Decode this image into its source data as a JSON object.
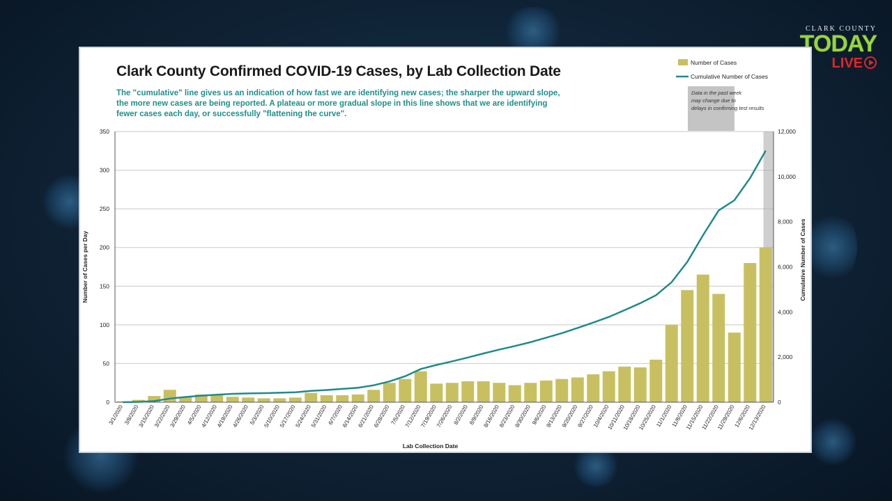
{
  "overlay": {
    "brand_top": "CLARK COUNTY",
    "brand_main": "TODAY",
    "brand_live": "LIVE"
  },
  "chart_data": {
    "type": "bar",
    "title": "Clark County Confirmed COVID-19 Cases, by Lab Collection Date",
    "subtitle": "The \"cumulative\" line gives  us an indication of how fast we are identifying new cases; the sharper the upward slope, the more new cases are being reported. A plateau or more gradual slope in this line shows that we are identifying fewer cases each day, or successfully \"flattening the curve\".",
    "xlabel": "Lab Collection Date",
    "ylabel": "Number of Cases per Day",
    "y2label": "Cumulative Number of Cases",
    "ylim": [
      0,
      350
    ],
    "y2lim": [
      0,
      12000
    ],
    "yticks": [
      "0",
      "50",
      "100",
      "150",
      "200",
      "250",
      "300",
      "350"
    ],
    "y2ticks": [
      "0",
      "2,000",
      "4,000",
      "6,000",
      "8,000",
      "10,000",
      "12,000"
    ],
    "xticks": [
      "3/1/2020",
      "3/8/2020",
      "3/15/2020",
      "3/22/2020",
      "3/29/2020",
      "4/5/2020",
      "4/12/2020",
      "4/19/2020",
      "4/26/2020",
      "5/3/2020",
      "5/10/2020",
      "5/17/2020",
      "5/24/2020",
      "5/31/2020",
      "6/7/2020",
      "6/14/2020",
      "6/21/2020",
      "6/28/2020",
      "7/5/2020",
      "7/12/2020",
      "7/19/2020",
      "7/26/2020",
      "8/2/2020",
      "8/9/2020",
      "8/16/2020",
      "8/23/2020",
      "8/30/2020",
      "9/6/2020",
      "9/13/2020",
      "9/20/2020",
      "9/27/2020",
      "10/4/2020",
      "10/11/2020",
      "10/18/2020",
      "10/25/2020",
      "11/1/2020",
      "11/8/2020",
      "11/15/2020",
      "11/22/2020",
      "11/29/2020",
      "12/6/2020",
      "12/13/2020"
    ],
    "weekly_avg_cases_per_day": [
      1,
      3,
      8,
      16,
      7,
      10,
      9,
      7,
      6,
      5,
      5,
      6,
      12,
      9,
      9,
      10,
      16,
      25,
      30,
      40,
      24,
      25,
      27,
      27,
      25,
      22,
      25,
      28,
      30,
      32,
      36,
      40,
      46,
      45,
      55,
      100,
      145,
      165,
      140,
      90,
      180,
      200
    ],
    "cumulative_weekly": [
      0,
      10,
      50,
      160,
      230,
      290,
      330,
      370,
      390,
      400,
      420,
      440,
      500,
      540,
      590,
      640,
      750,
      920,
      1150,
      1470,
      1650,
      1810,
      1980,
      2160,
      2330,
      2490,
      2660,
      2860,
      3060,
      3290,
      3530,
      3780,
      4080,
      4390,
      4740,
      5320,
      6220,
      7400,
      8500,
      8950,
      9930,
      11150
    ],
    "legend": [
      {
        "name": "Number of Cases",
        "color": "#c8c060"
      },
      {
        "name": "Cumulative Number of Cases",
        "color": "#208a8a"
      }
    ],
    "legend_position": "top-right",
    "annotation": "Data in the past week may change due to delays in confirming test results",
    "grid": true
  }
}
